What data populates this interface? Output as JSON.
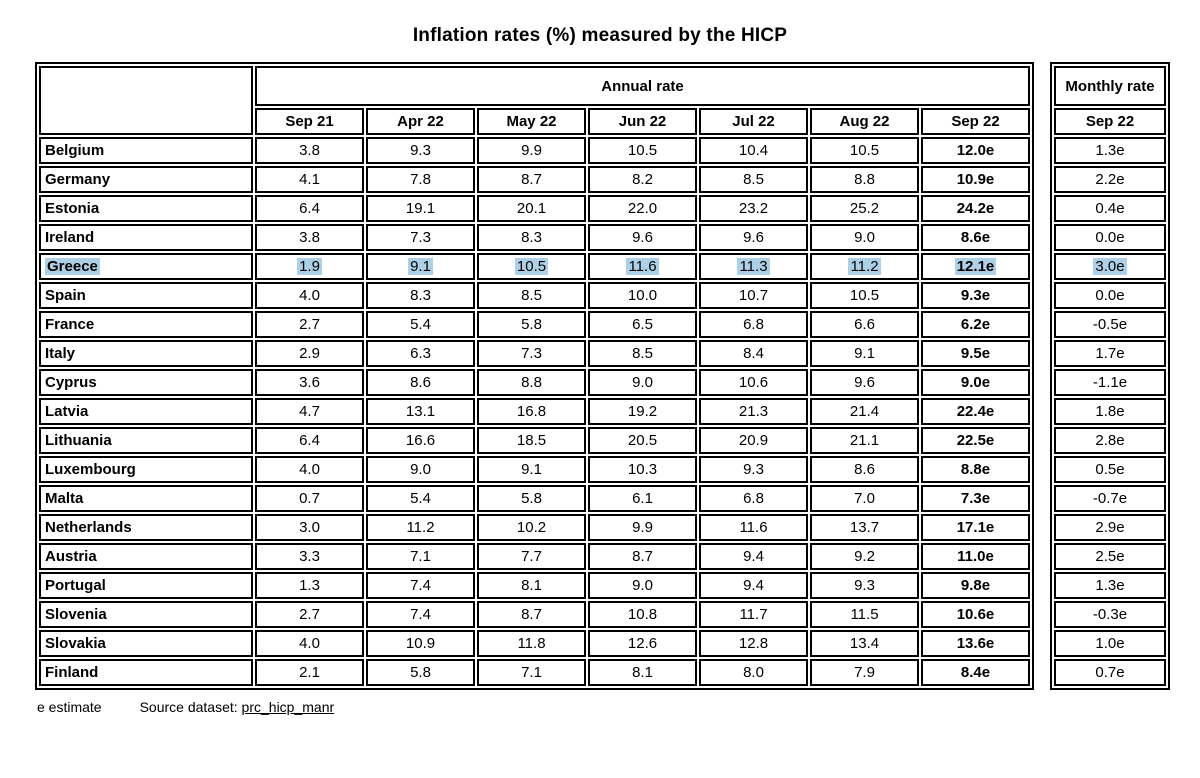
{
  "title": "Inflation rates (%) measured by the HICP",
  "table": {
    "annual_header": "Annual rate",
    "monthly_header": "Monthly rate",
    "annual_columns": [
      "Sep 21",
      "Apr 22",
      "May 22",
      "Jun 22",
      "Jul 22",
      "Aug 22",
      "Sep 22"
    ],
    "monthly_column": "Sep 22",
    "rows": [
      {
        "country": "Belgium",
        "annual": [
          "3.8",
          "9.3",
          "9.9",
          "10.5",
          "10.4",
          "10.5",
          "12.0e"
        ],
        "monthly": "1.3e",
        "highlighted": false
      },
      {
        "country": "Germany",
        "annual": [
          "4.1",
          "7.8",
          "8.7",
          "8.2",
          "8.5",
          "8.8",
          "10.9e"
        ],
        "monthly": "2.2e",
        "highlighted": false
      },
      {
        "country": "Estonia",
        "annual": [
          "6.4",
          "19.1",
          "20.1",
          "22.0",
          "23.2",
          "25.2",
          "24.2e"
        ],
        "monthly": "0.4e",
        "highlighted": false
      },
      {
        "country": "Ireland",
        "annual": [
          "3.8",
          "7.3",
          "8.3",
          "9.6",
          "9.6",
          "9.0",
          "8.6e"
        ],
        "monthly": "0.0e",
        "highlighted": false
      },
      {
        "country": "Greece",
        "annual": [
          "1.9",
          "9.1",
          "10.5",
          "11.6",
          "11.3",
          "11.2",
          "12.1e"
        ],
        "monthly": "3.0e",
        "highlighted": true
      },
      {
        "country": "Spain",
        "annual": [
          "4.0",
          "8.3",
          "8.5",
          "10.0",
          "10.7",
          "10.5",
          "9.3e"
        ],
        "monthly": "0.0e",
        "highlighted": false
      },
      {
        "country": "France",
        "annual": [
          "2.7",
          "5.4",
          "5.8",
          "6.5",
          "6.8",
          "6.6",
          "6.2e"
        ],
        "monthly": "-0.5e",
        "highlighted": false
      },
      {
        "country": "Italy",
        "annual": [
          "2.9",
          "6.3",
          "7.3",
          "8.5",
          "8.4",
          "9.1",
          "9.5e"
        ],
        "monthly": "1.7e",
        "highlighted": false
      },
      {
        "country": "Cyprus",
        "annual": [
          "3.6",
          "8.6",
          "8.8",
          "9.0",
          "10.6",
          "9.6",
          "9.0e"
        ],
        "monthly": "-1.1e",
        "highlighted": false
      },
      {
        "country": "Latvia",
        "annual": [
          "4.7",
          "13.1",
          "16.8",
          "19.2",
          "21.3",
          "21.4",
          "22.4e"
        ],
        "monthly": "1.8e",
        "highlighted": false
      },
      {
        "country": "Lithuania",
        "annual": [
          "6.4",
          "16.6",
          "18.5",
          "20.5",
          "20.9",
          "21.1",
          "22.5e"
        ],
        "monthly": "2.8e",
        "highlighted": false
      },
      {
        "country": "Luxembourg",
        "annual": [
          "4.0",
          "9.0",
          "9.1",
          "10.3",
          "9.3",
          "8.6",
          "8.8e"
        ],
        "monthly": "0.5e",
        "highlighted": false
      },
      {
        "country": "Malta",
        "annual": [
          "0.7",
          "5.4",
          "5.8",
          "6.1",
          "6.8",
          "7.0",
          "7.3e"
        ],
        "monthly": "-0.7e",
        "highlighted": false
      },
      {
        "country": "Netherlands",
        "annual": [
          "3.0",
          "11.2",
          "10.2",
          "9.9",
          "11.6",
          "13.7",
          "17.1e"
        ],
        "monthly": "2.9e",
        "highlighted": false
      },
      {
        "country": "Austria",
        "annual": [
          "3.3",
          "7.1",
          "7.7",
          "8.7",
          "9.4",
          "9.2",
          "11.0e"
        ],
        "monthly": "2.5e",
        "highlighted": false
      },
      {
        "country": "Portugal",
        "annual": [
          "1.3",
          "7.4",
          "8.1",
          "9.0",
          "9.4",
          "9.3",
          "9.8e"
        ],
        "monthly": "1.3e",
        "highlighted": false
      },
      {
        "country": "Slovenia",
        "annual": [
          "2.7",
          "7.4",
          "8.7",
          "10.8",
          "11.7",
          "11.5",
          "10.6e"
        ],
        "monthly": "-0.3e",
        "highlighted": false
      },
      {
        "country": "Slovakia",
        "annual": [
          "4.0",
          "10.9",
          "11.8",
          "12.6",
          "12.8",
          "13.4",
          "13.6e"
        ],
        "monthly": "1.0e",
        "highlighted": false
      },
      {
        "country": "Finland",
        "annual": [
          "2.1",
          "5.8",
          "7.1",
          "8.1",
          "8.0",
          "7.9",
          "8.4e"
        ],
        "monthly": "0.7e",
        "highlighted": false
      }
    ]
  },
  "footer": {
    "estimate_note": "e estimate",
    "source_label": "Source dataset:",
    "source_link": "prc_hicp_manr"
  },
  "colors": {
    "highlight": "#aed0e7",
    "border": "#000000",
    "background": "#ffffff"
  }
}
